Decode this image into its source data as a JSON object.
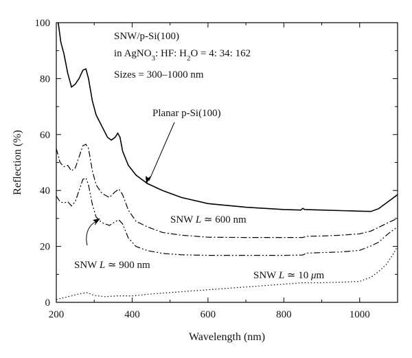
{
  "chart_data": {
    "type": "line",
    "title": "",
    "xlabel": "Wavelength (nm)",
    "ylabel": "Reflection (%)",
    "xlim": [
      200,
      1100
    ],
    "ylim": [
      0,
      100
    ],
    "x_ticks": [
      200,
      400,
      600,
      800,
      1000
    ],
    "y_ticks": [
      0,
      20,
      40,
      60,
      80,
      100
    ],
    "grid": false,
    "legend": "none",
    "annotations": {
      "sample_line1": "SNW/p-Si(100)",
      "sample_line2_prefix": "in AgNO",
      "sample_line2_sub1": "3",
      "sample_line2_mid": ": HF: H",
      "sample_line2_sub2": "2",
      "sample_line2_suffix": "O = 4: 34: 162",
      "sizes": "Sizes = 300–1000 nm",
      "planar_label": "Planar p-Si(100)",
      "snw600_prefix": "SNW ",
      "snw600_L": "L",
      "snw600_suffix": " ≃ 600 nm",
      "snw900_prefix": "SNW ",
      "snw900_L": "L",
      "snw900_suffix": " ≃ 900 nm",
      "snw10_prefix": "SNW ",
      "snw10_L": "L",
      "snw10_mid": " ≃ 10 ",
      "snw10_mu": "μ",
      "snw10_suffix": "m"
    },
    "series": [
      {
        "style": "solid",
        "x": [
          205,
          212,
          220,
          230,
          240,
          250,
          260,
          270,
          278,
          285,
          295,
          305,
          320,
          335,
          345,
          355,
          362,
          368,
          375,
          390,
          410,
          440,
          480,
          530,
          600,
          700,
          800,
          845,
          850,
          855,
          900,
          950,
          1000,
          1030,
          1050,
          1075,
          1100
        ],
        "y": [
          100,
          93,
          89,
          82,
          77,
          78,
          80,
          83,
          83.5,
          80,
          72,
          67,
          63,
          59,
          58,
          59,
          60.5,
          59,
          54,
          49,
          45.5,
          42.5,
          40,
          37.5,
          35.3,
          34,
          33.2,
          33,
          33.6,
          33.2,
          33,
          32.8,
          32.6,
          32.5,
          33.5,
          36,
          38.5
        ]
      },
      {
        "style": "dashdot",
        "x": [
          200,
          210,
          220,
          230,
          240,
          250,
          260,
          270,
          278,
          285,
          295,
          305,
          320,
          340,
          355,
          365,
          375,
          390,
          410,
          440,
          480,
          530,
          600,
          700,
          800,
          850,
          860,
          900,
          950,
          1000,
          1030,
          1050,
          1075,
          1100
        ],
        "y": [
          55,
          50,
          48.5,
          49,
          47,
          48,
          52,
          56,
          56.5,
          55,
          47,
          42,
          39,
          37.5,
          39.5,
          40.5,
          38.5,
          33,
          29,
          27,
          25,
          24,
          23.3,
          23.2,
          23.2,
          23.2,
          23.6,
          23.7,
          24,
          24.5,
          25.5,
          26.8,
          28.5,
          30
        ]
      },
      {
        "style": "dashdotdot",
        "x": [
          200,
          210,
          220,
          230,
          240,
          250,
          260,
          270,
          278,
          285,
          295,
          305,
          320,
          340,
          355,
          365,
          375,
          390,
          410,
          440,
          480,
          530,
          600,
          700,
          800,
          850,
          860,
          900,
          950,
          1000,
          1030,
          1050,
          1075,
          1100
        ],
        "y": [
          38,
          36,
          35.5,
          36,
          34.5,
          36,
          40,
          44,
          44.5,
          42,
          35,
          30.5,
          28.5,
          27.5,
          28.8,
          29.5,
          28,
          23,
          20,
          18.5,
          17.5,
          17,
          16.8,
          16.8,
          16.8,
          16.9,
          17.6,
          17.8,
          18,
          18.6,
          20.2,
          21.5,
          24.5,
          27
        ]
      },
      {
        "style": "dotted",
        "x": [
          200,
          230,
          260,
          280,
          300,
          330,
          360,
          400,
          450,
          500,
          550,
          600,
          650,
          700,
          750,
          800,
          850,
          900,
          950,
          1000,
          1030,
          1050,
          1070,
          1085,
          1100
        ],
        "y": [
          1,
          2,
          3,
          3.5,
          2.5,
          2,
          2.3,
          2.3,
          3,
          3.5,
          4,
          4.5,
          5,
          5.5,
          6,
          6.5,
          7,
          7,
          7.2,
          7.5,
          9,
          11,
          13.5,
          16.5,
          20
        ]
      }
    ]
  }
}
